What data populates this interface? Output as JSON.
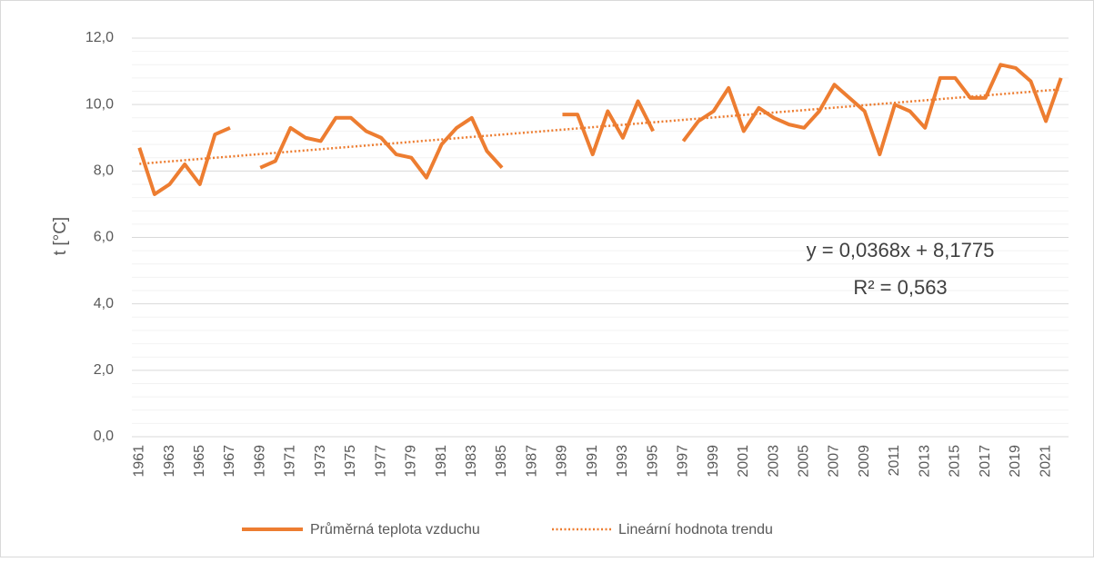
{
  "chart_data": {
    "type": "line",
    "ylabel": "t [°C]",
    "categories": [
      "1961",
      null,
      "1963",
      null,
      "1965",
      null,
      "1967",
      null,
      "1969",
      null,
      "1971",
      null,
      "1973",
      null,
      "1975",
      null,
      "1977",
      null,
      "1979",
      null,
      "1981",
      null,
      "1983",
      null,
      "1985",
      null,
      "1987",
      null,
      "1989",
      null,
      "1991",
      null,
      "1993",
      null,
      "1995",
      null,
      "1997",
      null,
      "1999",
      null,
      "2001",
      null,
      "2003",
      null,
      "2005",
      null,
      "2007",
      null,
      "2009",
      null,
      "2011",
      null,
      "2013",
      null,
      "2015",
      null,
      "2017",
      null,
      "2019",
      null,
      "2021",
      null
    ],
    "series": [
      {
        "name": "Průměrná teplota vzduchu",
        "color": "#ed7d31",
        "values": [
          8.7,
          7.3,
          7.6,
          8.2,
          7.6,
          9.1,
          9.3,
          null,
          8.1,
          8.3,
          9.3,
          9.0,
          8.9,
          9.6,
          9.6,
          9.2,
          9.0,
          8.5,
          8.4,
          7.8,
          8.8,
          9.3,
          9.6,
          8.6,
          8.1,
          null,
          null,
          null,
          9.7,
          9.7,
          8.5,
          9.8,
          9.0,
          10.1,
          9.2,
          null,
          8.9,
          9.5,
          9.8,
          10.5,
          9.2,
          9.9,
          9.6,
          9.4,
          9.3,
          9.8,
          10.6,
          10.2,
          9.8,
          8.5,
          10.0,
          9.8,
          9.3,
          10.8,
          10.8,
          10.2,
          10.2,
          11.2,
          11.1,
          10.7,
          9.5,
          10.8
        ]
      }
    ],
    "trendline": {
      "name": "Lineární hodnota trendu",
      "color": "#ed7d31",
      "slope": 0.0368,
      "intercept": 8.1775,
      "equation": "y = 0,0368x + 8,1775",
      "r_squared": "R² = 0,563"
    },
    "ylim": [
      0,
      12
    ],
    "yticks": [
      {
        "value": 0,
        "label": "0,0"
      },
      {
        "value": 2,
        "label": "2,0"
      },
      {
        "value": 4,
        "label": "4,0"
      },
      {
        "value": 6,
        "label": "6,0"
      },
      {
        "value": 8,
        "label": "8,0"
      },
      {
        "value": 10,
        "label": "10,0"
      },
      {
        "value": 12,
        "label": "12,0"
      }
    ],
    "minor_yticks": [
      0.4,
      0.8,
      1.2,
      1.6,
      2.4,
      2.8,
      3.2,
      3.6,
      4.4,
      4.8,
      5.2,
      5.6,
      6.4,
      6.8,
      7.2,
      7.6,
      8.4,
      8.8,
      9.2,
      9.6,
      10.4,
      10.8,
      11.2,
      11.6
    ],
    "grid": true,
    "legend": "bottom"
  }
}
